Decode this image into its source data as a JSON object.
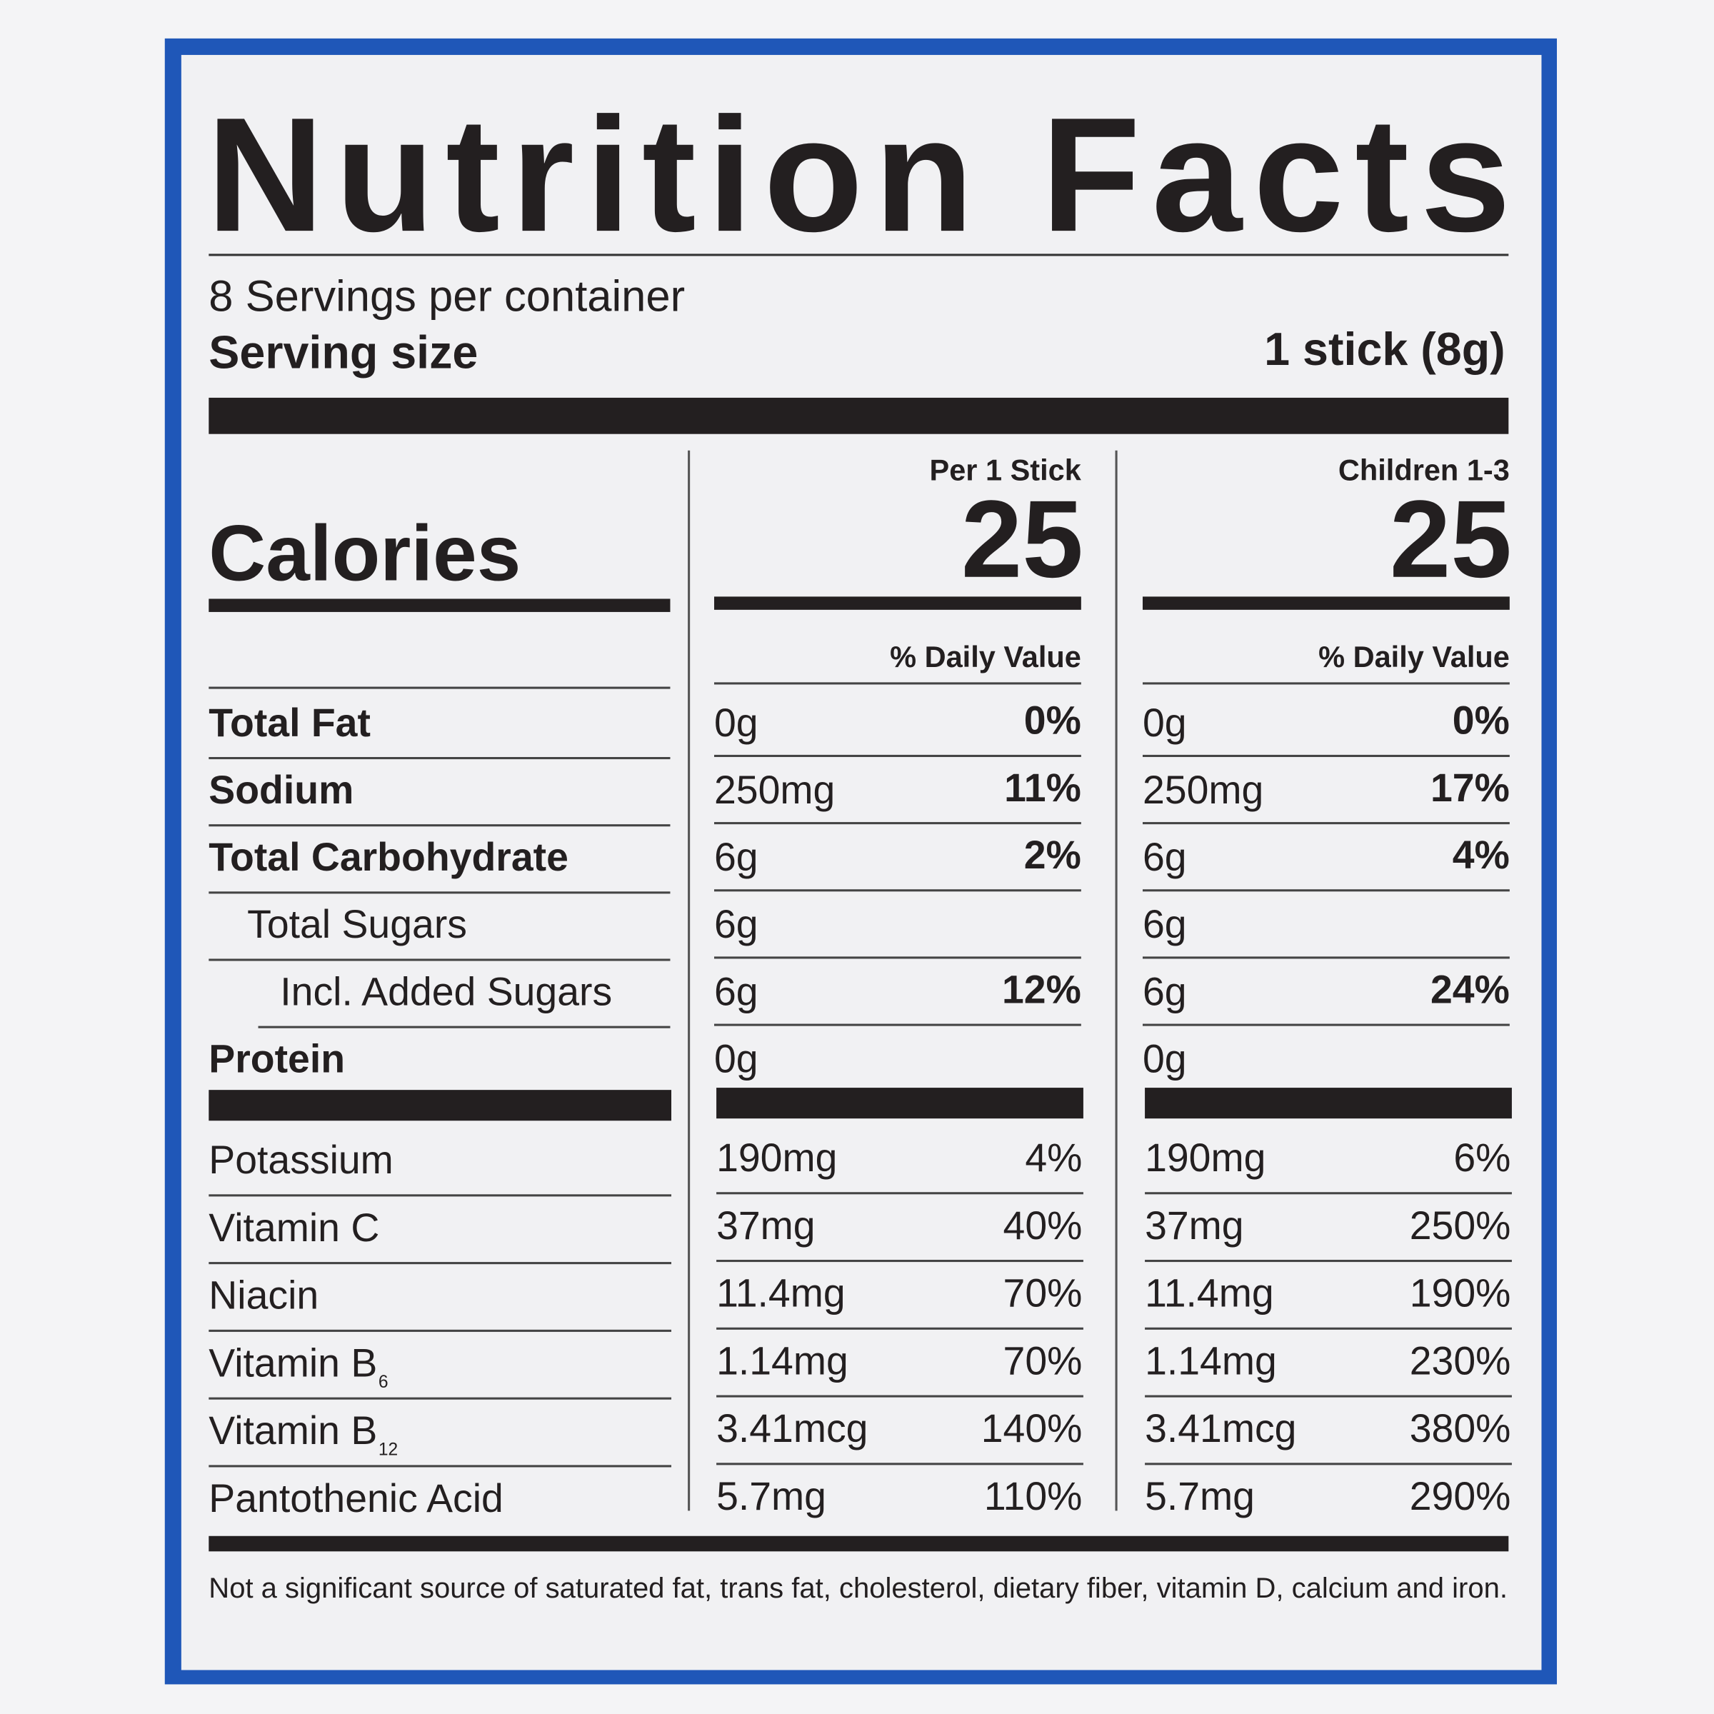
{
  "title": "Nutrition Facts",
  "servings": "8 Servings per container",
  "serving_size": {
    "label": "Serving size",
    "value": "1 stick (8g)"
  },
  "calories": {
    "label": "Calories"
  },
  "columns": [
    {
      "header": "Per 1 Stick",
      "calories": "25",
      "dv_header": "% Daily Value"
    },
    {
      "header": "Children 1-3",
      "calories": "25",
      "dv_header": "% Daily Value"
    }
  ],
  "rows": [
    {
      "label": "Total Fat",
      "bold": true,
      "indent": 0,
      "values": [
        [
          "0g",
          "0%"
        ],
        [
          "0g",
          "0%"
        ]
      ]
    },
    {
      "label": "Sodium",
      "bold": true,
      "indent": 0,
      "values": [
        [
          "250mg",
          "11%"
        ],
        [
          "250mg",
          "17%"
        ]
      ]
    },
    {
      "label": "Total Carbohydrate",
      "bold": true,
      "indent": 0,
      "values": [
        [
          "6g",
          "2%"
        ],
        [
          "6g",
          "4%"
        ]
      ]
    },
    {
      "label": "Total Sugars",
      "bold": false,
      "indent": 1,
      "values": [
        [
          "6g",
          null
        ],
        [
          "6g",
          null
        ]
      ]
    },
    {
      "label": "Incl. Added Sugars",
      "bold": false,
      "indent": 2,
      "values": [
        [
          "6g",
          "12%"
        ],
        [
          "6g",
          "24%"
        ]
      ]
    },
    {
      "label": "Protein",
      "bold": true,
      "indent": 0,
      "values": [
        [
          "0g",
          null
        ],
        [
          "0g",
          null
        ]
      ]
    }
  ],
  "micronutrients": [
    {
      "label": "Potassium",
      "values": [
        [
          "190mg",
          "4%"
        ],
        [
          "190mg",
          "6%"
        ]
      ]
    },
    {
      "label": "Vitamin C",
      "values": [
        [
          "37mg",
          "40%"
        ],
        [
          "37mg",
          "250%"
        ]
      ]
    },
    {
      "label": "Niacin",
      "values": [
        [
          "11.4mg",
          "70%"
        ],
        [
          "11.4mg",
          "190%"
        ]
      ]
    },
    {
      "label": "Vitamin B",
      "sub": "6",
      "values": [
        [
          "1.14mg",
          "70%"
        ],
        [
          "1.14mg",
          "230%"
        ]
      ]
    },
    {
      "label": "Vitamin B",
      "sub": "12",
      "values": [
        [
          "3.41mcg",
          "140%"
        ],
        [
          "3.41mcg",
          "380%"
        ]
      ]
    },
    {
      "label": "Pantothenic Acid",
      "values": [
        [
          "5.7mg",
          "110%"
        ],
        [
          "5.7mg",
          "290%"
        ]
      ]
    }
  ],
  "footnote": "Not a significant source of saturated fat, trans fat, cholesterol, dietary fiber, vitamin D, calcium and iron."
}
